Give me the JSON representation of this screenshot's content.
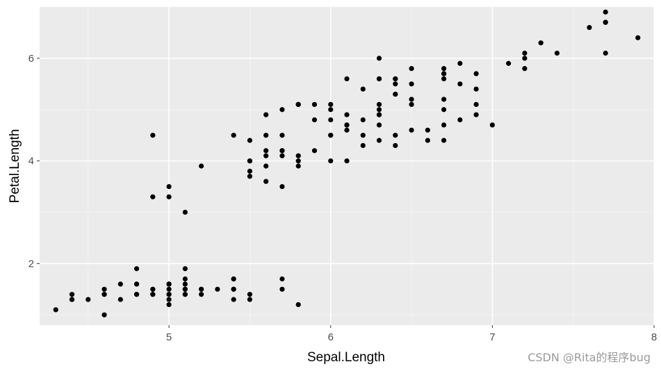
{
  "chart_data": {
    "type": "scatter",
    "xlabel": "Sepal.Length",
    "ylabel": "Petal.Length",
    "xlim": [
      4.2,
      8.0
    ],
    "ylim": [
      0.8,
      7.0
    ],
    "x_ticks": [
      5,
      6,
      7,
      8
    ],
    "y_ticks": [
      2,
      4,
      6
    ],
    "grid": true,
    "legend": "none",
    "colors": {
      "panel": "#ebebeb",
      "grid_major": "#ffffff",
      "grid_minor": "#f5f5f5",
      "point": "#000000"
    },
    "points": [
      [
        5.1,
        1.4
      ],
      [
        4.9,
        1.4
      ],
      [
        4.7,
        1.3
      ],
      [
        4.6,
        1.5
      ],
      [
        5.0,
        1.4
      ],
      [
        5.4,
        1.7
      ],
      [
        4.6,
        1.4
      ],
      [
        5.0,
        1.5
      ],
      [
        4.4,
        1.4
      ],
      [
        4.9,
        1.5
      ],
      [
        5.4,
        1.5
      ],
      [
        4.8,
        1.6
      ],
      [
        4.8,
        1.4
      ],
      [
        4.3,
        1.1
      ],
      [
        5.8,
        1.2
      ],
      [
        5.7,
        1.5
      ],
      [
        5.4,
        1.3
      ],
      [
        5.1,
        1.4
      ],
      [
        5.7,
        1.7
      ],
      [
        5.1,
        1.5
      ],
      [
        5.4,
        1.7
      ],
      [
        5.1,
        1.5
      ],
      [
        4.6,
        1.0
      ],
      [
        5.1,
        1.7
      ],
      [
        4.8,
        1.9
      ],
      [
        5.0,
        1.6
      ],
      [
        5.0,
        1.6
      ],
      [
        5.2,
        1.5
      ],
      [
        5.2,
        1.4
      ],
      [
        4.7,
        1.6
      ],
      [
        4.8,
        1.6
      ],
      [
        5.4,
        1.5
      ],
      [
        5.2,
        1.5
      ],
      [
        5.5,
        1.4
      ],
      [
        4.9,
        1.5
      ],
      [
        5.0,
        1.2
      ],
      [
        5.5,
        1.3
      ],
      [
        4.9,
        1.4
      ],
      [
        4.4,
        1.3
      ],
      [
        5.1,
        1.5
      ],
      [
        5.0,
        1.3
      ],
      [
        4.5,
        1.3
      ],
      [
        4.4,
        1.3
      ],
      [
        5.0,
        1.6
      ],
      [
        5.1,
        1.9
      ],
      [
        4.8,
        1.4
      ],
      [
        5.1,
        1.6
      ],
      [
        4.6,
        1.4
      ],
      [
        5.3,
        1.5
      ],
      [
        5.0,
        1.4
      ],
      [
        7.0,
        4.7
      ],
      [
        6.4,
        4.5
      ],
      [
        6.9,
        4.9
      ],
      [
        5.5,
        4.0
      ],
      [
        6.5,
        4.6
      ],
      [
        5.7,
        4.5
      ],
      [
        6.3,
        4.7
      ],
      [
        4.9,
        3.3
      ],
      [
        6.6,
        4.6
      ],
      [
        5.2,
        3.9
      ],
      [
        5.0,
        3.5
      ],
      [
        5.9,
        4.2
      ],
      [
        6.0,
        4.0
      ],
      [
        6.1,
        4.7
      ],
      [
        5.6,
        3.6
      ],
      [
        6.7,
        4.4
      ],
      [
        5.6,
        4.5
      ],
      [
        5.8,
        4.1
      ],
      [
        6.2,
        4.5
      ],
      [
        5.6,
        3.9
      ],
      [
        5.9,
        4.8
      ],
      [
        6.1,
        4.0
      ],
      [
        6.3,
        4.9
      ],
      [
        6.1,
        4.7
      ],
      [
        6.4,
        4.3
      ],
      [
        6.6,
        4.4
      ],
      [
        6.8,
        4.8
      ],
      [
        6.7,
        5.0
      ],
      [
        6.0,
        4.5
      ],
      [
        5.7,
        3.5
      ],
      [
        5.5,
        3.8
      ],
      [
        5.5,
        3.7
      ],
      [
        5.8,
        3.9
      ],
      [
        6.0,
        5.1
      ],
      [
        5.4,
        4.5
      ],
      [
        6.0,
        4.5
      ],
      [
        6.7,
        4.7
      ],
      [
        6.3,
        4.4
      ],
      [
        5.6,
        4.1
      ],
      [
        5.5,
        4.0
      ],
      [
        5.5,
        4.4
      ],
      [
        6.1,
        4.6
      ],
      [
        5.8,
        4.0
      ],
      [
        5.0,
        3.3
      ],
      [
        5.6,
        4.2
      ],
      [
        5.7,
        4.2
      ],
      [
        5.7,
        4.2
      ],
      [
        6.2,
        4.3
      ],
      [
        5.1,
        3.0
      ],
      [
        5.7,
        4.1
      ],
      [
        6.3,
        6.0
      ],
      [
        5.8,
        5.1
      ],
      [
        7.1,
        5.9
      ],
      [
        6.3,
        5.6
      ],
      [
        6.5,
        5.8
      ],
      [
        7.6,
        6.6
      ],
      [
        4.9,
        4.5
      ],
      [
        7.3,
        6.3
      ],
      [
        6.7,
        5.8
      ],
      [
        7.2,
        6.1
      ],
      [
        6.5,
        5.1
      ],
      [
        6.4,
        5.3
      ],
      [
        6.8,
        5.5
      ],
      [
        5.7,
        5.0
      ],
      [
        5.8,
        5.1
      ],
      [
        6.4,
        5.3
      ],
      [
        6.5,
        5.5
      ],
      [
        7.7,
        6.7
      ],
      [
        7.7,
        6.9
      ],
      [
        6.0,
        5.0
      ],
      [
        6.9,
        5.7
      ],
      [
        5.6,
        4.9
      ],
      [
        7.7,
        6.7
      ],
      [
        6.3,
        4.9
      ],
      [
        6.7,
        5.7
      ],
      [
        7.2,
        6.0
      ],
      [
        6.2,
        4.8
      ],
      [
        6.1,
        4.9
      ],
      [
        6.4,
        5.6
      ],
      [
        7.2,
        5.8
      ],
      [
        7.4,
        6.1
      ],
      [
        7.9,
        6.4
      ],
      [
        6.4,
        5.6
      ],
      [
        6.3,
        5.1
      ],
      [
        6.1,
        5.6
      ],
      [
        7.7,
        6.1
      ],
      [
        6.3,
        5.6
      ],
      [
        6.4,
        5.5
      ],
      [
        6.0,
        4.8
      ],
      [
        6.9,
        5.4
      ],
      [
        6.7,
        5.6
      ],
      [
        6.9,
        5.1
      ],
      [
        5.8,
        5.1
      ],
      [
        6.8,
        5.9
      ],
      [
        6.7,
        5.7
      ],
      [
        6.7,
        5.2
      ],
      [
        6.3,
        5.0
      ],
      [
        6.5,
        5.2
      ],
      [
        6.2,
        5.4
      ],
      [
        5.9,
        5.1
      ]
    ]
  },
  "watermark": "CSDN @Rita的程序bug"
}
